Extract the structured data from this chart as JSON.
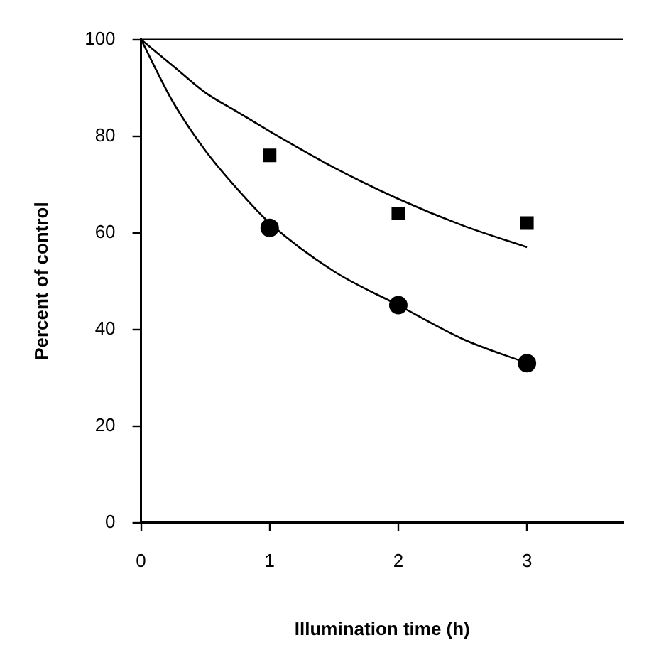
{
  "chart_data": {
    "type": "scatter",
    "xlabel": "Illumination time (h)",
    "ylabel": "Percent of control",
    "xlim": [
      0,
      3.75
    ],
    "xticks": [
      0,
      1,
      2,
      3
    ],
    "ylim": [
      0,
      100
    ],
    "yticks": [
      0,
      20,
      40,
      60,
      80,
      100
    ],
    "grid": false,
    "legend": false,
    "series": [
      {
        "type": "line",
        "color": "#000000",
        "marker": "none",
        "x": [
          0,
          0.25,
          0.5,
          0.75,
          1,
          1.5,
          2,
          2.5,
          3
        ],
        "values": [
          100,
          94.5,
          89,
          85,
          81,
          73.5,
          67,
          61.5,
          57
        ]
      },
      {
        "type": "line",
        "color": "#000000",
        "marker": "none",
        "x": [
          0,
          0.25,
          0.5,
          0.75,
          1,
          1.5,
          2,
          2.5,
          3
        ],
        "values": [
          100,
          87,
          77,
          69,
          62,
          52,
          45,
          38,
          33
        ]
      },
      {
        "color": "#000000",
        "marker": "square",
        "x": [
          1,
          2,
          3
        ],
        "values": [
          76,
          64,
          62
        ]
      },
      {
        "color": "#000000",
        "marker": "circle",
        "x": [
          1,
          2,
          3
        ],
        "values": [
          61,
          45,
          33
        ]
      }
    ]
  }
}
